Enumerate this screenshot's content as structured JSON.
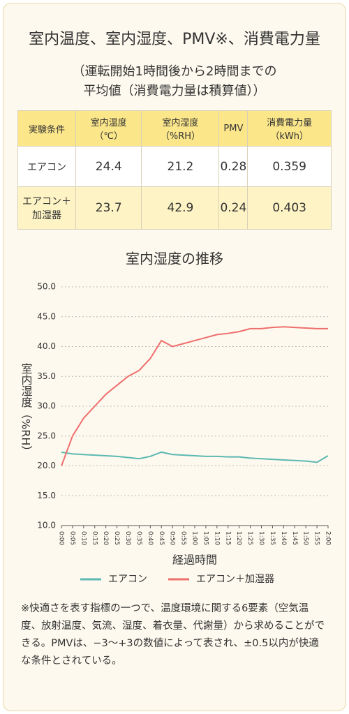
{
  "header": {
    "title": "室内温度、室内湿度、PMV※、消費電力量",
    "subtitle": [
      "（運転開始1時間後から2時間までの",
      "平均値（消費電力量は積算値））"
    ]
  },
  "table": {
    "columns": [
      "実験条件",
      "室内温度（℃）",
      "室内湿度（%RH）",
      "PMV",
      "消費電力量（kWh）"
    ],
    "rows": [
      [
        "エアコン",
        24.4,
        21.2,
        0.28,
        0.359
      ],
      [
        "エアコン＋加湿器",
        23.7,
        42.9,
        0.24,
        0.403
      ]
    ]
  },
  "chart_data": {
    "type": "line",
    "title": "室内湿度の推移",
    "x_label": "経過時間",
    "y_label": "室内湿度（%RH）",
    "categories": [
      "0:00",
      "0:05",
      "0:10",
      "0:15",
      "0:20",
      "0:25",
      "0:30",
      "0:35",
      "0:40",
      "0:45",
      "0:50",
      "0:55",
      "1:00",
      "1:05",
      "1:10",
      "1:15",
      "1:20",
      "1:25",
      "1:30",
      "1:35",
      "1:40",
      "1:45",
      "1:50",
      "1:55",
      "2:00"
    ],
    "series": [
      {
        "name": "エアコン",
        "color": "#5cb8b2",
        "values": [
          22.3,
          22.0,
          21.9,
          21.8,
          21.7,
          21.6,
          21.4,
          21.2,
          21.6,
          22.3,
          21.9,
          21.8,
          21.7,
          21.6,
          21.6,
          21.5,
          21.5,
          21.3,
          21.2,
          21.1,
          21.0,
          20.9,
          20.8,
          20.6,
          21.7
        ]
      },
      {
        "name": "エアコン＋加湿器",
        "color": "#ee6e6e",
        "values": [
          20.0,
          25.0,
          28.0,
          30.0,
          32.0,
          33.5,
          35.0,
          36.0,
          38.0,
          41.0,
          40.0,
          40.5,
          41.0,
          41.5,
          42.0,
          42.2,
          42.5,
          43.0,
          43.0,
          43.2,
          43.3,
          43.2,
          43.1,
          43.0,
          43.0
        ]
      }
    ],
    "ylim": [
      10,
      50
    ],
    "yticks": [
      {
        "value": 10,
        "label": "10.0"
      },
      {
        "value": 15,
        "label": "15.0"
      },
      {
        "value": 20,
        "label": "20.0"
      },
      {
        "value": 25,
        "label": "25.0"
      },
      {
        "value": 30,
        "label": "30.0"
      },
      {
        "value": 35,
        "label": "35.0"
      },
      {
        "value": 40,
        "label": "40.0"
      },
      {
        "value": 45,
        "label": "45.0"
      },
      {
        "value": 50,
        "label": "50.0"
      }
    ],
    "grid": true
  },
  "footnote": "※快適さを表す指標の一つで、温度環境に関する6要素（空気温度、放射温度、気流、湿度、着衣量、代謝量）から求めることができる。PMVは、−3〜+3の数値によって表され、±0.5以内が快適な条件とされている。"
}
